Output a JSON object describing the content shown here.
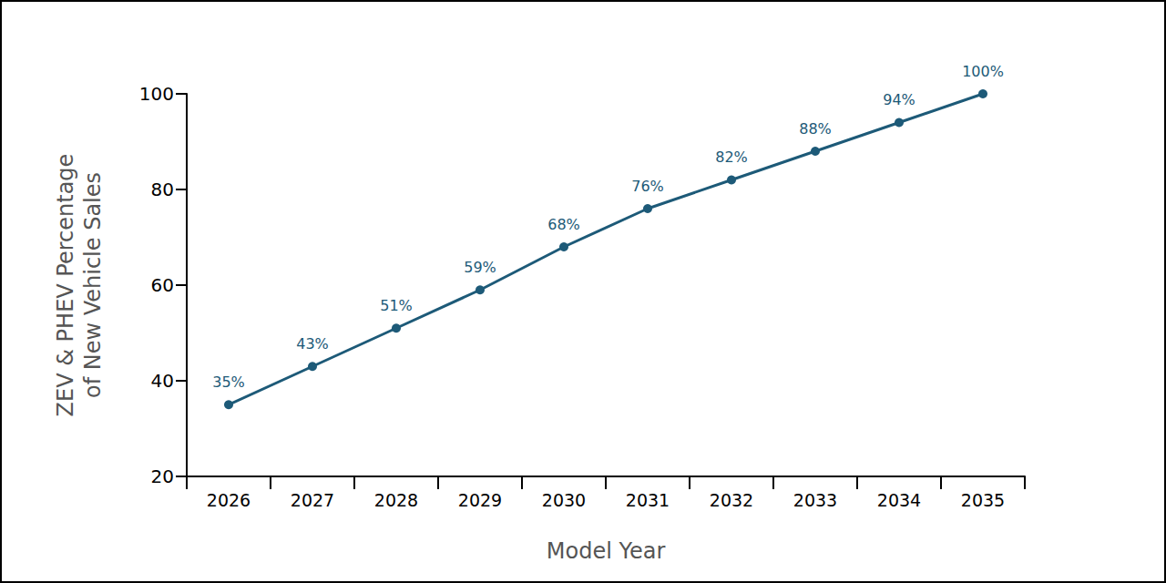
{
  "chart_data": {
    "type": "line",
    "xlabel": "Model Year",
    "ylabel": "ZEV & PHEV Percentage\nof New Vehicle Sales",
    "categories": [
      "2026",
      "2027",
      "2028",
      "2029",
      "2030",
      "2031",
      "2032",
      "2033",
      "2034",
      "2035"
    ],
    "values": [
      35,
      43,
      51,
      59,
      68,
      76,
      82,
      88,
      94,
      100
    ],
    "value_labels": [
      "35%",
      "43%",
      "51%",
      "59%",
      "68%",
      "76%",
      "82%",
      "88%",
      "94%",
      "100%"
    ],
    "data_labels": true,
    "color": "#1d5a78",
    "marker": "circle",
    "ylim": [
      20,
      100
    ],
    "yticks": [
      20,
      40,
      60,
      80,
      100
    ],
    "grid": false
  }
}
